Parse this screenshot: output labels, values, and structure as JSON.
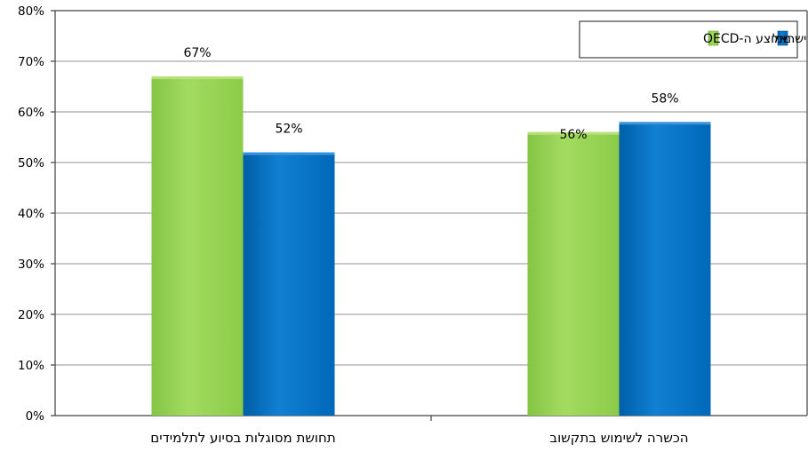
{
  "chart_data": {
    "type": "bar",
    "categories": [
      "תחושת מסוגלות בסיוע לתלמידים",
      "הכשרה לשימוש בתקשוב"
    ],
    "series": [
      {
        "name": "ממוצע ה-OECD",
        "values": [
          67,
          56
        ],
        "color": "#92D050"
      },
      {
        "name": "ישראל",
        "values": [
          52,
          58
        ],
        "color": "#0070C0"
      }
    ],
    "data_labels": [
      [
        "67%",
        "56%"
      ],
      [
        "52%",
        "58%"
      ]
    ],
    "y_ticks": [
      "0%",
      "10%",
      "20%",
      "30%",
      "40%",
      "50%",
      "60%",
      "70%",
      "80%"
    ],
    "ylim": [
      0,
      80
    ],
    "grid": true,
    "legend_position": "top-right",
    "title": "",
    "xlabel": "",
    "ylabel": ""
  }
}
